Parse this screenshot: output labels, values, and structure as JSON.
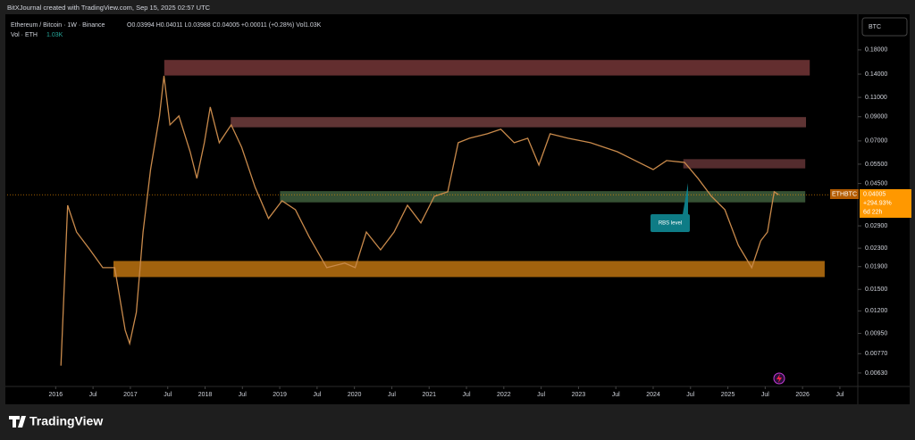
{
  "header": {
    "credit": "BitXJournal created with TradingView.com, Sep 15, 2025 02:57 UTC"
  },
  "legend": {
    "symbol": "Ethereum / Bitcoin · 1W · Binance",
    "ohlc": "O0.03994 H0.04011 L0.03988 C0.04005 +0.00011 (+0.28%) Vol1.03K",
    "volume_label": "Vol · ETH",
    "volume_value": "1.03K"
  },
  "currency_button": "BTC",
  "price_label": {
    "symbol": "ETHBTC",
    "price": "0.04005",
    "change": "+294.93%",
    "countdown": "6d 22h"
  },
  "brand": "TradingView",
  "chart_data": {
    "type": "line",
    "log_scale": true,
    "grid": false,
    "xlim": [
      2015.35,
      2026.74
    ],
    "ylim": [
      0.00553,
      0.251
    ],
    "xticks": [
      2016,
      {
        "value": 2016.5,
        "label": "Jul"
      },
      2017,
      {
        "value": 2017.5,
        "label": "Jul"
      },
      2018,
      {
        "value": 2018.5,
        "label": "Jul"
      },
      2019,
      {
        "value": 2019.5,
        "label": "Jul"
      },
      2020,
      {
        "value": 2020.5,
        "label": "Jul"
      },
      2021,
      {
        "value": 2021.5,
        "label": "Jul"
      },
      2022,
      {
        "value": 2022.5,
        "label": "Jul"
      },
      2023,
      {
        "value": 2023.5,
        "label": "Jul"
      },
      2024,
      {
        "value": 2024.5,
        "label": "Jul"
      },
      2025,
      {
        "value": 2025.5,
        "label": "Jul"
      },
      2026,
      {
        "value": 2026.5,
        "label": "Jul"
      }
    ],
    "yticks": [
      {
        "value": 0.18,
        "label": "0.18000"
      },
      {
        "value": 0.14,
        "label": "0.14000"
      },
      {
        "value": 0.11,
        "label": "0.11000"
      },
      {
        "value": 0.09,
        "label": "0.09000"
      },
      {
        "value": 0.07,
        "label": "0.07000"
      },
      {
        "value": 0.055,
        "label": "0.05500"
      },
      {
        "value": 0.045,
        "label": "0.04500"
      },
      {
        "value": 0.029,
        "label": "0.02900"
      },
      {
        "value": 0.023,
        "label": "0.02300"
      },
      {
        "value": 0.019,
        "label": "0.01900"
      },
      {
        "value": 0.015,
        "label": "0.01500"
      },
      {
        "value": 0.012,
        "label": "0.01200"
      },
      {
        "value": 0.0095,
        "label": "0.00950"
      },
      {
        "value": 0.0077,
        "label": "0.00770"
      },
      {
        "value": 0.0063,
        "label": "0.00630"
      }
    ],
    "series": [
      {
        "name": "ETHBTC",
        "color": "#c98a4b",
        "x": [
          2016.07,
          2016.16,
          2016.28,
          2016.46,
          2016.63,
          2016.79,
          2016.93,
          2016.99,
          2017.08,
          2017.17,
          2017.27,
          2017.39,
          2017.45,
          2017.53,
          2017.65,
          2017.8,
          2017.89,
          2017.99,
          2018.07,
          2018.19,
          2018.35,
          2018.49,
          2018.67,
          2018.85,
          2019.03,
          2019.21,
          2019.39,
          2019.63,
          2019.87,
          2020.01,
          2020.16,
          2020.35,
          2020.53,
          2020.71,
          2020.89,
          2021.07,
          2021.25,
          2021.39,
          2021.54,
          2021.78,
          2021.96,
          2022.14,
          2022.32,
          2022.47,
          2022.62,
          2022.86,
          2023.16,
          2023.52,
          2023.76,
          2024.0,
          2024.18,
          2024.42,
          2024.6,
          2024.78,
          2024.96,
          2025.14,
          2025.32,
          2025.44,
          2025.53,
          2025.62,
          2025.68
        ],
        "values": [
          0.0068,
          0.0359,
          0.0272,
          0.0226,
          0.0188,
          0.0188,
          0.00983,
          0.00855,
          0.01183,
          0.0272,
          0.052,
          0.0907,
          0.1376,
          0.0827,
          0.0907,
          0.0626,
          0.0475,
          0.0687,
          0.0995,
          0.0687,
          0.0827,
          0.0656,
          0.0433,
          0.0313,
          0.0376,
          0.0343,
          0.026,
          0.0188,
          0.0197,
          0.0188,
          0.0272,
          0.0226,
          0.0272,
          0.0359,
          0.0299,
          0.0394,
          0.0413,
          0.0687,
          0.072,
          0.0754,
          0.079,
          0.0687,
          0.072,
          0.0545,
          0.0754,
          0.072,
          0.0687,
          0.0626,
          0.0571,
          0.052,
          0.0571,
          0.056,
          0.0475,
          0.0394,
          0.0343,
          0.0237,
          0.0188,
          0.0248,
          0.0272,
          0.0413,
          0.04005
        ]
      }
    ],
    "zones": [
      {
        "xlim": [
          2017.45,
          2026.1
        ],
        "ylim": [
          0.1376,
          0.1626
        ],
        "color": "#6e3335"
      },
      {
        "xlim": [
          2018.34,
          2026.05
        ],
        "ylim": [
          0.0804,
          0.0899
        ],
        "color": "#6a3a3a"
      },
      {
        "xlim": [
          2024.4,
          2026.04
        ],
        "ylim": [
          0.0525,
          0.0581
        ],
        "color": "#5e3134"
      },
      {
        "xlim": [
          2019.0,
          2026.04
        ],
        "ylim": [
          0.0369,
          0.0417
        ],
        "color": "#3c5a3a"
      },
      {
        "xlim": [
          2016.77,
          2026.3
        ],
        "ylim": [
          0.017,
          0.0202
        ],
        "color": "#b36d10"
      }
    ],
    "annotation": "RBS level"
  }
}
